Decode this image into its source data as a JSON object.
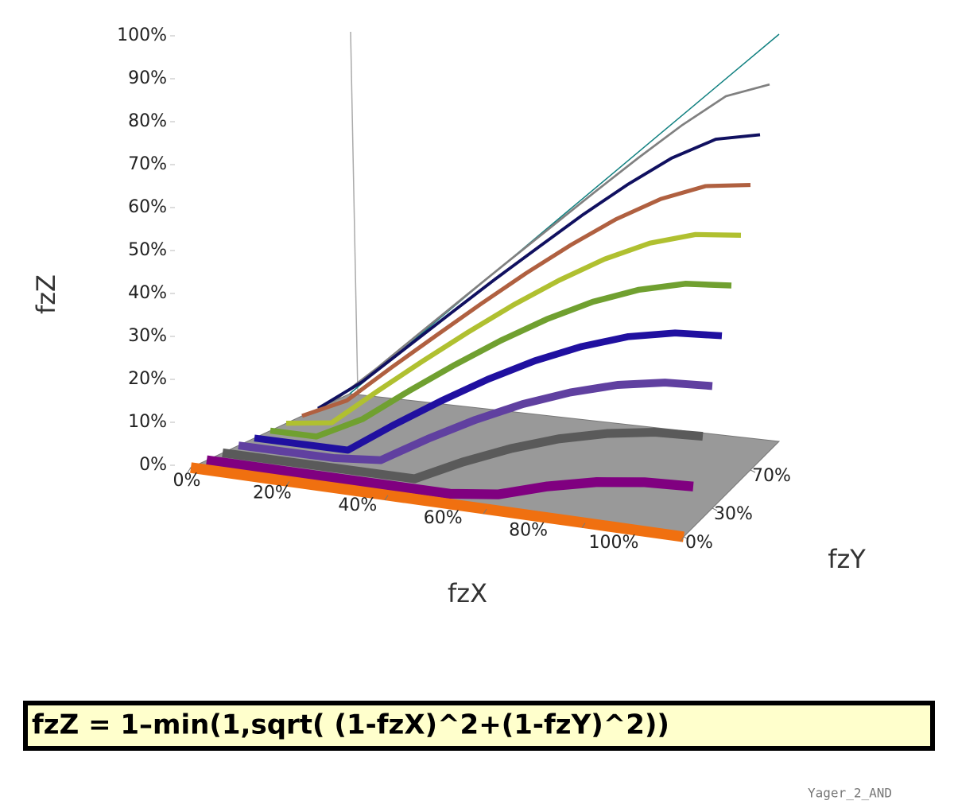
{
  "chart_data": {
    "type": "ribbon3d",
    "z_label": "fzZ",
    "x_label": "fzX",
    "y_label": "fzY",
    "formula": "fzZ = 1–min(1,sqrt( (1-fzX)^2+(1-fzY)^2))",
    "footnote": "Yager_2_AND",
    "x": [
      0,
      10,
      20,
      30,
      40,
      50,
      60,
      70,
      80,
      90,
      100
    ],
    "xlim": [
      0,
      100
    ],
    "ylim": [
      0,
      100
    ],
    "zlim": [
      0,
      100
    ],
    "xticks": [
      {
        "value": 0,
        "label": "0%"
      },
      {
        "value": 20,
        "label": "20%"
      },
      {
        "value": 40,
        "label": "40%"
      },
      {
        "value": 60,
        "label": "60%"
      },
      {
        "value": 80,
        "label": "80%"
      },
      {
        "value": 100,
        "label": "100%"
      }
    ],
    "yticks": [
      {
        "value": 0,
        "label": "0%"
      },
      {
        "value": 30,
        "label": "30%"
      },
      {
        "value": 70,
        "label": "70%"
      }
    ],
    "zticks": [
      {
        "value": 0,
        "label": "0%"
      },
      {
        "value": 10,
        "label": "10%"
      },
      {
        "value": 20,
        "label": "20%"
      },
      {
        "value": 30,
        "label": "30%"
      },
      {
        "value": 40,
        "label": "40%"
      },
      {
        "value": 50,
        "label": "50%"
      },
      {
        "value": 60,
        "label": "60%"
      },
      {
        "value": 70,
        "label": "70%"
      },
      {
        "value": 80,
        "label": "80%"
      },
      {
        "value": 90,
        "label": "90%"
      },
      {
        "value": 100,
        "label": "100%"
      }
    ],
    "series": [
      {
        "y": 0,
        "color": "#f07010",
        "values": [
          0,
          0,
          0,
          0,
          0,
          0,
          0,
          0,
          0,
          0,
          0
        ]
      },
      {
        "y": 10,
        "color": "#800080",
        "values": [
          0,
          0,
          0,
          0,
          0,
          0,
          1.5,
          5.1,
          7.8,
          9.4,
          10
        ]
      },
      {
        "y": 20,
        "color": "#5a5a5a",
        "values": [
          0,
          0,
          0,
          0,
          0,
          5.7,
          10.6,
          14.6,
          17.5,
          19.4,
          20
        ]
      },
      {
        "y": 30,
        "color": "#6040a0",
        "values": [
          0,
          0,
          0,
          1.0,
          7.8,
          14.0,
          19.4,
          23.8,
          27.2,
          29.3,
          30
        ]
      },
      {
        "y": 40,
        "color": "#2010a0",
        "values": [
          0,
          0,
          0,
          7.8,
          15.1,
          21.9,
          27.9,
          32.9,
          36.8,
          39.2,
          40
        ]
      },
      {
        "y": 50,
        "color": "#70a030",
        "values": [
          0,
          0,
          5.7,
          14.0,
          21.9,
          29.3,
          36.0,
          41.7,
          46.1,
          49.0,
          50
        ]
      },
      {
        "y": 60,
        "color": "#b0c030",
        "values": [
          0,
          1.5,
          10.6,
          19.4,
          27.9,
          36.0,
          43.4,
          50,
          55.3,
          58.8,
          60
        ]
      },
      {
        "y": 70,
        "color": "#b06040",
        "values": [
          0,
          5.1,
          14.6,
          23.8,
          32.9,
          41.7,
          50,
          57.6,
          63.9,
          68.4,
          70
        ]
      },
      {
        "y": 80,
        "color": "#101060",
        "values": [
          0,
          7.8,
          17.5,
          27.2,
          36.8,
          46.1,
          55.3,
          63.9,
          71.7,
          77.6,
          80
        ]
      },
      {
        "y": 90,
        "color": "#808080",
        "values": [
          0,
          9.4,
          19.4,
          29.3,
          39.2,
          49.0,
          58.8,
          68.4,
          77.6,
          85.9,
          90
        ]
      },
      {
        "y": 100,
        "color": "#108080",
        "values": [
          0,
          10,
          20,
          30,
          40,
          50,
          60,
          70,
          80,
          90,
          100
        ]
      }
    ]
  }
}
